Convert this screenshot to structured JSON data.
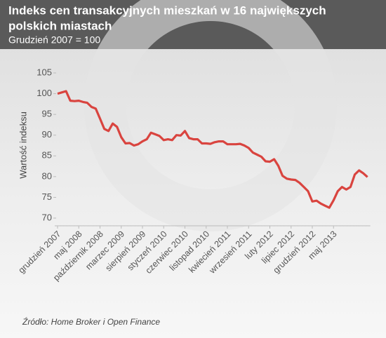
{
  "chart_data": {
    "type": "line",
    "title": "Indeks cen transakcyjnych mieszkań w 16 największych polskich miastach",
    "subtitle": "Grudzień 2007 = 100",
    "y_label": "Wartość indeksu",
    "source": "Źródło: Home Broker i Open Finance",
    "categories": [
      "grudzień 2007",
      null,
      null,
      null,
      null,
      "maj 2008",
      null,
      null,
      null,
      null,
      "październik 2008",
      null,
      null,
      null,
      null,
      "marzec 2009",
      null,
      null,
      null,
      null,
      "sierpień 2009",
      null,
      null,
      null,
      null,
      "styczeń 2010",
      null,
      null,
      null,
      null,
      "czerwiec 2010",
      null,
      null,
      null,
      null,
      "listopad 2010",
      null,
      null,
      null,
      null,
      "kwiecień 2011",
      null,
      null,
      null,
      null,
      "wrzesień 2011",
      null,
      null,
      null,
      null,
      "luty 2012",
      null,
      null,
      null,
      null,
      "lipiec 2012",
      null,
      null,
      null,
      null,
      "grudzień 2012",
      null,
      null,
      null,
      null,
      "maj 2013",
      null,
      null,
      null,
      null,
      null,
      null,
      null,
      null
    ],
    "series": [
      {
        "name": "Indeks",
        "color": "#d9443f",
        "values": [
          100,
          100.3,
          100.6,
          98.3,
          98.2,
          98.3,
          98,
          97.8,
          96.8,
          96.4,
          94,
          91.5,
          91,
          92.8,
          92,
          89.5,
          88,
          88.1,
          87.5,
          87.8,
          88.5,
          89,
          90.6,
          90.2,
          89.8,
          88.8,
          89,
          88.8,
          90,
          89.9,
          91,
          89.3,
          89,
          89,
          88,
          88,
          87.9,
          88.3,
          88.5,
          88.5,
          87.8,
          87.8,
          87.8,
          87.9,
          87.5,
          86.9,
          85.8,
          85.3,
          84.8,
          83.7,
          83.6,
          84.2,
          82.6,
          80.2,
          79.5,
          79.3,
          79.2,
          78.5,
          77.5,
          76.5,
          74,
          74.2,
          73.5,
          73,
          72.5,
          74.3,
          76.5,
          77.5,
          76.9,
          77.5,
          80.5,
          81.5,
          80.8,
          79.9
        ]
      }
    ],
    "ylim": [
      70,
      105
    ],
    "yticks": [
      70,
      75,
      80,
      85,
      90,
      95,
      100,
      105
    ]
  }
}
